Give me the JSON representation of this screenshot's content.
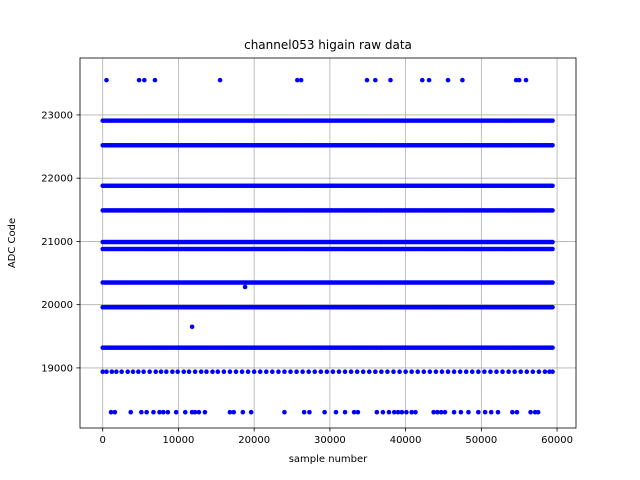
{
  "chart_data": {
    "type": "scatter",
    "title": "channel053 higain raw data",
    "xlabel": "sample number",
    "ylabel": "ADC Code",
    "xlim": [
      -3000,
      62500
    ],
    "ylim": [
      18050,
      23900
    ],
    "xticks": [
      0,
      10000,
      20000,
      30000,
      40000,
      50000,
      60000
    ],
    "xtick_labels": [
      "0",
      "10000",
      "20000",
      "30000",
      "40000",
      "50000",
      "60000"
    ],
    "yticks": [
      19000,
      20000,
      21000,
      22000,
      23000
    ],
    "ytick_labels": [
      "19000",
      "20000",
      "21000",
      "22000",
      "23000"
    ],
    "grid": true,
    "color": "#0000ff",
    "dense_levels": [
      22910,
      22520,
      21880,
      21490,
      20990,
      20880,
      20350,
      19960,
      19320
    ],
    "dense_x_range": [
      0,
      59400
    ],
    "dense_step": 220,
    "sparse_19000_level": 18940,
    "sparse_19000_x": [
      0,
      500,
      1200,
      1800,
      2500,
      3300,
      4000,
      4700,
      5400,
      6200,
      7000,
      7700,
      8400,
      9200,
      9900,
      10700,
      11400,
      12200,
      13000,
      13700,
      14500,
      15200,
      16000,
      16800,
      17600,
      18400,
      19200,
      20000,
      20800,
      21600,
      22400,
      23200,
      24000,
      24800,
      25600,
      26400,
      27200,
      28000,
      28800,
      29600,
      30400,
      31200,
      32000,
      32800,
      33600,
      34400,
      35200,
      36000,
      36800,
      37600,
      38400,
      39200,
      40000,
      40800,
      41600,
      42400,
      43200,
      44000,
      44800,
      45600,
      46400,
      47200,
      48000,
      48800,
      49600,
      50400,
      51200,
      52000,
      52800,
      53600,
      54400,
      55200,
      56000,
      56800,
      57600,
      58400,
      59000,
      59400
    ],
    "top_outliers_y": 23550,
    "top_outliers_x": [
      500,
      4800,
      5500,
      6900,
      15500,
      25700,
      26200,
      34900,
      36000,
      38000,
      42200,
      43100,
      45600,
      47500,
      54600,
      55000,
      55900
    ],
    "bottom_outliers_y": 18300,
    "bottom_outliers_x": [
      1100,
      1600,
      3700,
      5100,
      5800,
      6700,
      7500,
      8000,
      8600,
      9700,
      10900,
      11800,
      12200,
      12700,
      13500,
      16800,
      17300,
      18500,
      19600,
      24000,
      26600,
      27300,
      29300,
      30800,
      32000,
      33200,
      33700,
      36200,
      37000,
      37800,
      38500,
      39000,
      39500,
      40100,
      40800,
      41300,
      43700,
      44200,
      44700,
      45200,
      46400,
      47300,
      48300,
      49600,
      50500,
      51300,
      52200,
      54100,
      54700,
      56500,
      57100,
      57500
    ],
    "single_outliers": [
      {
        "x": 11800,
        "y": 19650
      },
      {
        "x": 18800,
        "y": 20280
      }
    ]
  }
}
